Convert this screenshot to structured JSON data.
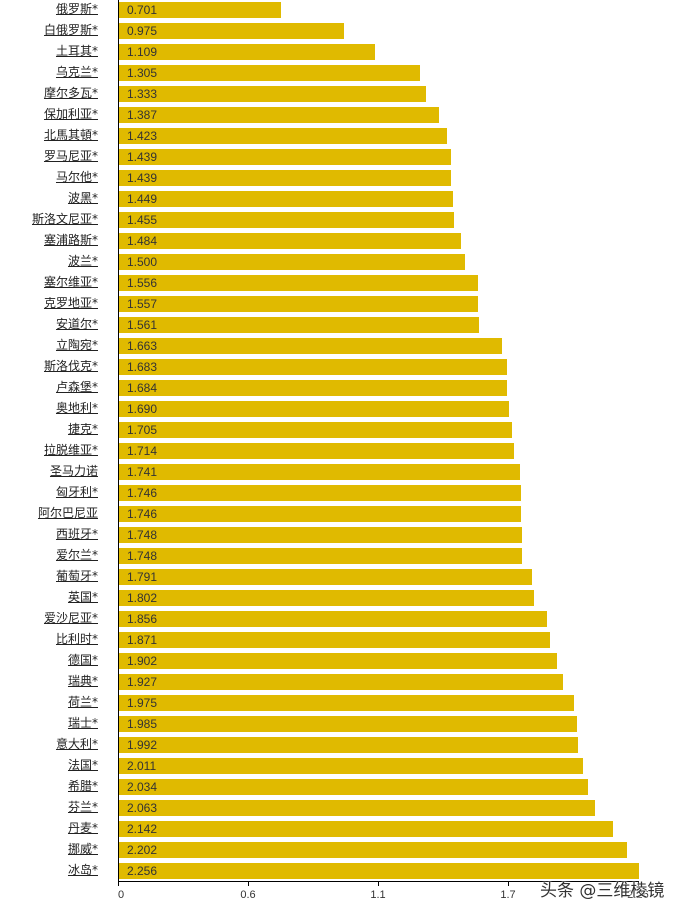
{
  "chart_data": {
    "type": "bar",
    "orientation": "horizontal",
    "title": "",
    "xlabel": "",
    "ylabel": "",
    "xlim": [
      0,
      2.256
    ],
    "x_ticks": [
      "0",
      "0.6",
      "1.1",
      "1.7",
      "2.26"
    ],
    "grid": false,
    "legend": null,
    "bar_color": "#E0BA00",
    "categories": [
      "俄罗斯*",
      "白俄罗斯*",
      "土耳其*",
      "乌克兰*",
      "摩尔多瓦*",
      "保加利亚*",
      "北馬其頓*",
      "罗马尼亚*",
      "马尔他*",
      "波黑*",
      "斯洛文尼亚*",
      "塞浦路斯*",
      "波兰*",
      "塞尔维亚*",
      "克罗地亚*",
      "安道尔*",
      "立陶宛*",
      "斯洛伐克*",
      "卢森堡*",
      "奥地利*",
      "捷克*",
      "拉脱维亚*",
      "圣马力诺",
      "匈牙利*",
      "阿尔巴尼亚",
      "西班牙*",
      "爱尔兰*",
      "葡萄牙*",
      "英国*",
      "爱沙尼亚*",
      "比利时*",
      "德国*",
      "瑞典*",
      "荷兰*",
      "瑞士*",
      "意大利*",
      "法国*",
      "希腊*",
      "芬兰*",
      "丹麦*",
      "挪威*",
      "冰岛*"
    ],
    "values": [
      0.701,
      0.975,
      1.109,
      1.305,
      1.333,
      1.387,
      1.423,
      1.439,
      1.439,
      1.449,
      1.455,
      1.484,
      1.5,
      1.556,
      1.557,
      1.561,
      1.663,
      1.683,
      1.684,
      1.69,
      1.705,
      1.714,
      1.741,
      1.746,
      1.746,
      1.748,
      1.748,
      1.791,
      1.802,
      1.856,
      1.871,
      1.902,
      1.927,
      1.975,
      1.985,
      1.992,
      2.011,
      2.034,
      2.063,
      2.142,
      2.202,
      2.256
    ],
    "value_labels": [
      "0.701",
      "0.975",
      "1.109",
      "1.305",
      "1.333",
      "1.387",
      "1.423",
      "1.439",
      "1.439",
      "1.449",
      "1.455",
      "1.484",
      "1.500",
      "1.556",
      "1.557",
      "1.561",
      "1.663",
      "1.683",
      "1.684",
      "1.690",
      "1.705",
      "1.714",
      "1.741",
      "1.746",
      "1.746",
      "1.748",
      "1.748",
      "1.791",
      "1.802",
      "1.856",
      "1.871",
      "1.902",
      "1.927",
      "1.975",
      "1.985",
      "1.992",
      "2.011",
      "2.034",
      "2.063",
      "2.142",
      "2.202",
      "2.256"
    ]
  },
  "watermark": "头条 @三维棱镜"
}
